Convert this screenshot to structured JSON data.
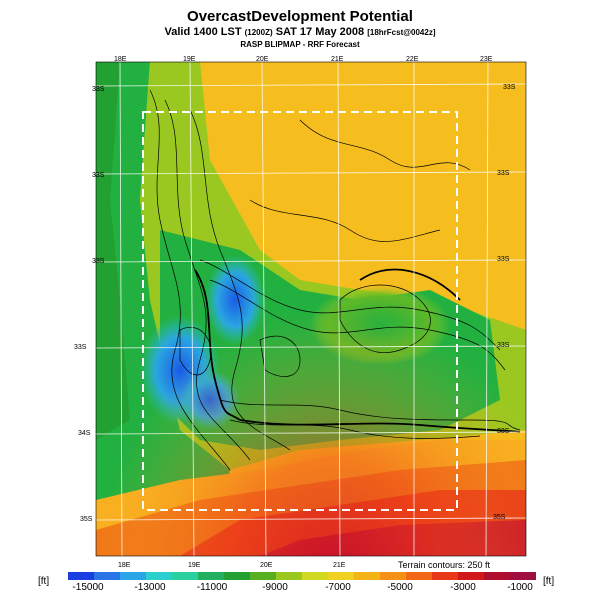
{
  "header": {
    "title": "OvercastDevelopment Potential",
    "subtitle_a": "Valid 1400 LST",
    "subtitle_utc": "(1200Z)",
    "subtitle_b": "SAT 17 May 2008",
    "subtitle_fcst": "[18hrFcst@0042z]",
    "subtitle2": "RASP BLIPMAP - RRF Forecast"
  },
  "map": {
    "top_lon_labels": [
      "18E",
      "19E",
      "20E",
      "21E",
      "22E",
      "23E"
    ],
    "bottom_lon_labels": [
      "18E",
      "19E",
      "20E",
      "21E"
    ],
    "lat_labels_left": [
      "33S",
      "33S",
      "33S",
      "33S",
      "34S",
      "35S"
    ],
    "lat_labels_right": [
      "33S",
      "33S",
      "33S",
      "33S",
      "33S",
      "35S"
    ],
    "terrain_note": "Terrain contours: 250 ft",
    "colors": {
      "land_high": "#f2b400",
      "land_mid": "#2aa22a",
      "low": "#2a74e0",
      "sea": "#f04a1a"
    }
  },
  "legend": {
    "unit_left": "[ft]",
    "unit_right": "[ft]",
    "ticks": [
      "-15000",
      "-13000",
      "-11000",
      "-9000",
      "-7000",
      "-5000",
      "-3000",
      "-1000"
    ],
    "colors": [
      "#1a3fe0",
      "#2a74e8",
      "#2aa6e8",
      "#2ad0d0",
      "#2ad0a0",
      "#22b060",
      "#22a032",
      "#58b020",
      "#9ac820",
      "#d0d820",
      "#f0d020",
      "#f4b418",
      "#f49018",
      "#f06818",
      "#e83818",
      "#d01818",
      "#b00e2e",
      "#a0103e"
    ]
  }
}
